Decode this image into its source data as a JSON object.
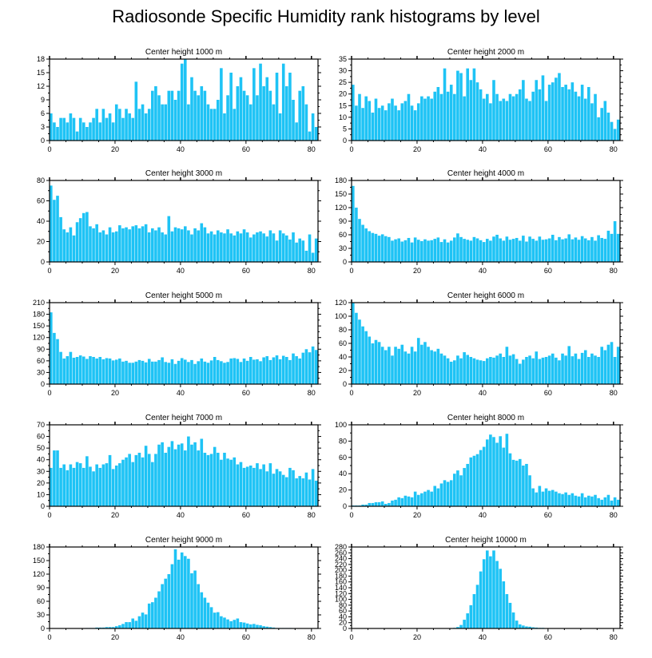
{
  "title": "Radiosonde Specific Humidity rank histograms by level",
  "colors": {
    "bar": "#1ec3f5",
    "axis": "#000000",
    "background": "#ffffff"
  },
  "chart_data": [
    {
      "type": "bar",
      "title": "Center height 1000 m",
      "xlim": [
        0,
        82
      ],
      "ylim": [
        0,
        18
      ],
      "xticks": [
        0,
        20,
        40,
        60,
        80
      ],
      "yticks": [
        0,
        3,
        6,
        9,
        12,
        15,
        18
      ],
      "values": [
        6,
        4,
        3,
        5,
        5,
        4,
        6,
        5,
        2,
        5,
        4,
        3,
        4,
        5,
        7,
        4,
        7,
        5,
        6,
        4,
        8,
        7,
        5,
        7,
        6,
        5,
        13,
        7,
        8,
        6,
        7,
        11,
        12,
        10,
        8,
        8,
        11,
        11,
        9,
        11,
        17,
        18,
        8,
        14,
        11,
        10,
        12,
        11,
        8,
        7,
        7,
        9,
        16,
        6,
        10,
        15,
        7,
        12,
        14,
        11,
        10,
        8,
        16,
        10,
        17,
        12,
        14,
        11,
        8,
        15,
        6,
        17,
        12,
        15,
        9,
        4,
        11,
        12,
        8,
        2,
        6,
        3
      ]
    },
    {
      "type": "bar",
      "title": "Center height 2000 m",
      "xlim": [
        0,
        82
      ],
      "ylim": [
        0,
        35
      ],
      "xticks": [
        0,
        20,
        40,
        60,
        80
      ],
      "yticks": [
        0,
        5,
        10,
        15,
        20,
        25,
        30,
        35
      ],
      "values": [
        24,
        15,
        20,
        14,
        19,
        17,
        12,
        18,
        14,
        15,
        13,
        16,
        18,
        15,
        13,
        16,
        17,
        20,
        15,
        13,
        16,
        19,
        18,
        19,
        18,
        21,
        23,
        20,
        31,
        21,
        24,
        20,
        30,
        29,
        19,
        31,
        26,
        31,
        25,
        22,
        18,
        20,
        16,
        26,
        20,
        17,
        18,
        17,
        20,
        19,
        20,
        22,
        26,
        18,
        17,
        21,
        26,
        22,
        28,
        17,
        24,
        25,
        27,
        29,
        23,
        24,
        22,
        25,
        21,
        19,
        24,
        18,
        23,
        16,
        20,
        10,
        14,
        17,
        12,
        8,
        5,
        9
      ]
    },
    {
      "type": "bar",
      "title": "Center height 3000 m",
      "xlim": [
        0,
        82
      ],
      "ylim": [
        0,
        80
      ],
      "xticks": [
        0,
        20,
        40,
        60,
        80
      ],
      "yticks": [
        0,
        20,
        40,
        60,
        80
      ],
      "values": [
        75,
        61,
        65,
        44,
        32,
        29,
        34,
        26,
        39,
        43,
        48,
        49,
        35,
        33,
        37,
        29,
        31,
        27,
        34,
        29,
        30,
        36,
        33,
        34,
        32,
        35,
        36,
        33,
        35,
        37,
        29,
        33,
        31,
        34,
        29,
        27,
        45,
        30,
        34,
        33,
        32,
        35,
        31,
        27,
        33,
        31,
        38,
        34,
        28,
        30,
        27,
        31,
        29,
        28,
        32,
        28,
        26,
        30,
        28,
        32,
        29,
        24,
        27,
        29,
        30,
        28,
        25,
        31,
        28,
        21,
        31,
        28,
        26,
        22,
        29,
        19,
        23,
        21,
        11,
        27,
        9,
        23
      ]
    },
    {
      "type": "bar",
      "title": "Center height 4000 m",
      "xlim": [
        0,
        82
      ],
      "ylim": [
        0,
        180
      ],
      "xticks": [
        0,
        20,
        40,
        60,
        80
      ],
      "yticks": [
        0,
        30,
        60,
        90,
        120,
        150,
        180
      ],
      "values": [
        168,
        120,
        95,
        82,
        74,
        68,
        64,
        62,
        58,
        61,
        57,
        55,
        47,
        50,
        52,
        45,
        48,
        53,
        43,
        54,
        49,
        46,
        50,
        47,
        48,
        51,
        54,
        44,
        50,
        43,
        47,
        54,
        63,
        55,
        51,
        49,
        47,
        55,
        52,
        48,
        44,
        51,
        47,
        56,
        60,
        52,
        47,
        56,
        49,
        51,
        53,
        47,
        58,
        45,
        56,
        51,
        47,
        56,
        49,
        50,
        52,
        60,
        48,
        55,
        50,
        52,
        61,
        50,
        54,
        49,
        57,
        52,
        48,
        55,
        47,
        59,
        53,
        51,
        69,
        62,
        90,
        62
      ]
    },
    {
      "type": "bar",
      "title": "Center height 5000 m",
      "xlim": [
        0,
        82
      ],
      "ylim": [
        0,
        210
      ],
      "xticks": [
        0,
        20,
        40,
        60,
        80
      ],
      "yticks": [
        0,
        30,
        60,
        90,
        120,
        150,
        180,
        210
      ],
      "values": [
        185,
        132,
        116,
        83,
        66,
        72,
        83,
        68,
        70,
        74,
        71,
        65,
        72,
        70,
        66,
        70,
        64,
        67,
        66,
        61,
        63,
        66,
        58,
        60,
        55,
        55,
        58,
        62,
        60,
        56,
        65,
        58,
        58,
        62,
        69,
        57,
        55,
        64,
        52,
        60,
        67,
        63,
        57,
        62,
        52,
        59,
        66,
        58,
        55,
        61,
        70,
        62,
        59,
        55,
        57,
        66,
        67,
        65,
        57,
        66,
        60,
        70,
        63,
        64,
        59,
        69,
        72,
        62,
        69,
        74,
        64,
        73,
        70,
        62,
        79,
        72,
        66,
        81,
        90,
        82,
        97,
        88
      ]
    },
    {
      "type": "bar",
      "title": "Center height 6000 m",
      "xlim": [
        0,
        82
      ],
      "ylim": [
        0,
        120
      ],
      "xticks": [
        0,
        20,
        40,
        60,
        80
      ],
      "yticks": [
        0,
        20,
        40,
        60,
        80,
        100,
        120
      ],
      "values": [
        120,
        105,
        95,
        85,
        78,
        70,
        60,
        65,
        62,
        55,
        50,
        55,
        42,
        55,
        52,
        58,
        48,
        45,
        55,
        48,
        68,
        58,
        62,
        55,
        50,
        48,
        52,
        45,
        42,
        38,
        33,
        35,
        42,
        38,
        47,
        43,
        40,
        38,
        36,
        35,
        34,
        38,
        40,
        39,
        42,
        45,
        40,
        55,
        42,
        44,
        37,
        30,
        36,
        40,
        42,
        38,
        48,
        37,
        39,
        40,
        42,
        45,
        39,
        35,
        45,
        42,
        56,
        41,
        45,
        37,
        46,
        50,
        40,
        45,
        42,
        40,
        55,
        50,
        58,
        62,
        40,
        55
      ]
    },
    {
      "type": "bar",
      "title": "Center height 7000 m",
      "xlim": [
        0,
        82
      ],
      "ylim": [
        0,
        70
      ],
      "xticks": [
        0,
        20,
        40,
        60,
        80
      ],
      "yticks": [
        0,
        10,
        20,
        30,
        40,
        50,
        60,
        70
      ],
      "values": [
        33,
        48,
        48,
        33,
        36,
        31,
        36,
        33,
        38,
        37,
        33,
        43,
        34,
        30,
        36,
        33,
        36,
        37,
        44,
        32,
        35,
        37,
        40,
        42,
        45,
        38,
        44,
        46,
        42,
        52,
        45,
        38,
        45,
        53,
        55,
        46,
        51,
        56,
        49,
        53,
        54,
        48,
        60,
        53,
        55,
        48,
        58,
        46,
        44,
        45,
        51,
        46,
        40,
        46,
        41,
        40,
        42,
        36,
        38,
        33,
        34,
        35,
        33,
        37,
        32,
        36,
        30,
        37,
        28,
        32,
        30,
        27,
        25,
        33,
        31,
        24,
        26,
        24,
        29,
        23,
        32,
        22
      ]
    },
    {
      "type": "bar",
      "title": "Center height 8000 m",
      "xlim": [
        0,
        82
      ],
      "ylim": [
        0,
        100
      ],
      "xticks": [
        0,
        20,
        40,
        60,
        80
      ],
      "yticks": [
        0,
        20,
        40,
        60,
        80,
        100
      ],
      "values": [
        1,
        1,
        1,
        2,
        2,
        4,
        4,
        5,
        5,
        6,
        3,
        4,
        7,
        8,
        11,
        10,
        13,
        12,
        11,
        18,
        14,
        16,
        18,
        20,
        18,
        25,
        22,
        28,
        32,
        30,
        32,
        40,
        44,
        38,
        47,
        52,
        60,
        62,
        64,
        69,
        73,
        82,
        88,
        85,
        78,
        86,
        72,
        89,
        65,
        57,
        56,
        58,
        50,
        52,
        38,
        22,
        17,
        25,
        18,
        22,
        19,
        20,
        18,
        16,
        15,
        17,
        14,
        16,
        13,
        12,
        16,
        11,
        13,
        12,
        14,
        10,
        8,
        11,
        14,
        7,
        11,
        8
      ]
    },
    {
      "type": "bar",
      "title": "Center height 9000 m",
      "xlim": [
        0,
        82
      ],
      "ylim": [
        0,
        180
      ],
      "xticks": [
        0,
        20,
        40,
        60,
        80
      ],
      "yticks": [
        0,
        30,
        60,
        90,
        120,
        150,
        180
      ],
      "values": [
        0,
        0,
        0,
        0,
        0,
        0,
        0,
        0,
        0,
        0,
        0,
        1,
        1,
        1,
        2,
        2,
        2,
        3,
        3,
        3,
        5,
        7,
        10,
        14,
        14,
        22,
        17,
        27,
        35,
        31,
        55,
        58,
        68,
        82,
        98,
        110,
        120,
        142,
        175,
        152,
        168,
        160,
        154,
        122,
        128,
        98,
        80,
        68,
        57,
        47,
        35,
        36,
        27,
        24,
        20,
        16,
        19,
        22,
        14,
        13,
        11,
        9,
        10,
        8,
        7,
        5,
        4,
        3,
        2,
        1,
        1,
        1,
        1,
        1,
        0,
        0,
        0,
        0,
        0,
        0,
        0,
        0
      ]
    },
    {
      "type": "bar",
      "title": "Center height 10000 m",
      "xlim": [
        0,
        82
      ],
      "ylim": [
        0,
        280
      ],
      "xticks": [
        0,
        20,
        40,
        60,
        80
      ],
      "yticks": [
        0,
        20,
        40,
        60,
        80,
        100,
        120,
        140,
        160,
        180,
        200,
        220,
        240,
        260,
        280
      ],
      "values": [
        0,
        0,
        0,
        0,
        0,
        0,
        0,
        0,
        0,
        0,
        0,
        0,
        0,
        0,
        0,
        0,
        0,
        0,
        0,
        0,
        0,
        0,
        0,
        0,
        0,
        0,
        0,
        0,
        0,
        0,
        0,
        2,
        5,
        12,
        30,
        52,
        80,
        118,
        150,
        196,
        238,
        268,
        248,
        268,
        232,
        205,
        162,
        118,
        88,
        55,
        27,
        14,
        10,
        7,
        6,
        4,
        3,
        2,
        2,
        1,
        1,
        0,
        0,
        0,
        0,
        0,
        0,
        0,
        0,
        0,
        0,
        0,
        0,
        0,
        0,
        0,
        0,
        0,
        0,
        0,
        0,
        0
      ]
    }
  ]
}
